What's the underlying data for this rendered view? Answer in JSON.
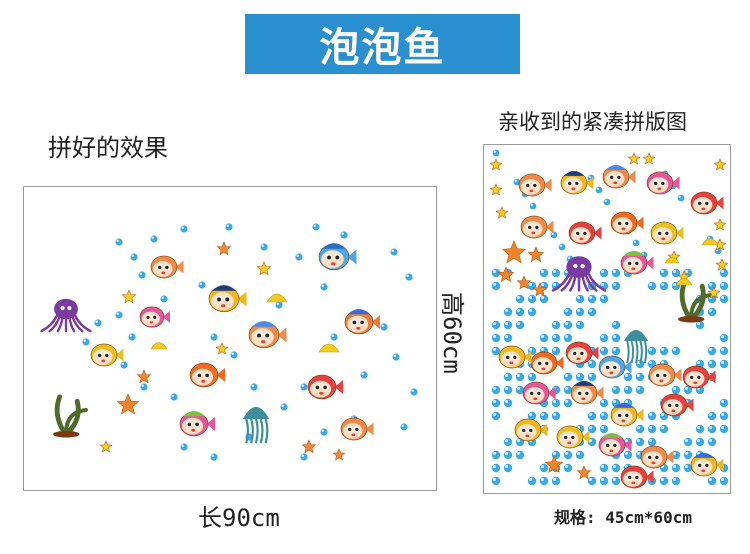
{
  "banner": {
    "title": "泡泡鱼",
    "color": "#2a8fcf"
  },
  "captions": {
    "assembled_effect": "拼好的效果",
    "received_layout": "亲收到的紧凑拼版图"
  },
  "dimensions": {
    "height": "高60cm",
    "width": "长90cm",
    "spec": "规格: 45cm*60cm"
  },
  "sticker_icons": [
    "fish-icon",
    "octopus-icon",
    "jellyfish-icon",
    "starfish-icon",
    "seaweed-icon",
    "shell-icon",
    "bubble-icon"
  ]
}
